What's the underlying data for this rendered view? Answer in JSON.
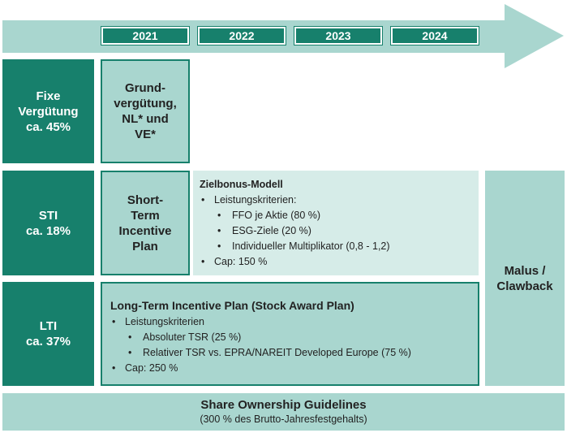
{
  "timeline": {
    "years": [
      "2021",
      "2022",
      "2023",
      "2024"
    ]
  },
  "rows": {
    "fixed": {
      "label_line1": "Fixe",
      "label_line2": "Vergütung",
      "label_line3": "ca. 45%",
      "box": [
        "Grund-",
        "vergütung,",
        "NL* und",
        "VE*"
      ]
    },
    "sti": {
      "label_line1": "STI",
      "label_line2": "ca. 18%",
      "box": [
        "Short-",
        "Term",
        "Incentive",
        "Plan"
      ],
      "detail": {
        "title": "Zielbonus-Modell",
        "criteria_label": "Leistungskriterien:",
        "criteria": [
          "FFO je Aktie (80 %)",
          "ESG-Ziele (20 %)",
          "Individueller Multiplikator (0,8 - 1,2)"
        ],
        "cap": "Cap: 150 %"
      }
    },
    "lti": {
      "label_line1": "LTI",
      "label_line2": "ca. 37%",
      "detail": {
        "title": "Long-Term Incentive Plan (Stock Award Plan)",
        "criteria_label": "Leistungskriterien",
        "criteria": [
          "Absoluter TSR (25 %)",
          "Relativer TSR vs. EPRA/NAREIT  Developed Europe (75 %)"
        ],
        "cap": "Cap: 250 %"
      }
    }
  },
  "malus": {
    "line1": "Malus /",
    "line2": "Clawback"
  },
  "footer": {
    "title": "Share Ownership Guidelines",
    "subtitle": "(300 % des Brutto-Jahresfestgehalts)"
  },
  "colors": {
    "dark": "#17806c",
    "light": "#a9d6cf",
    "pale": "#d6ece8"
  }
}
